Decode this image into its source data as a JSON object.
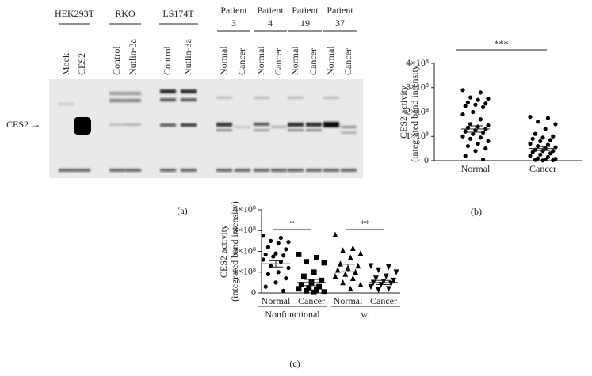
{
  "gel": {
    "label": "(a)",
    "groups": [
      {
        "name": "HEK293T"
      },
      {
        "name": "RKO"
      },
      {
        "name": "LS174T"
      },
      {
        "name": "Patient",
        "number": "3"
      },
      {
        "name": "Patient",
        "number": "4"
      },
      {
        "name": "Patient",
        "number": "19"
      },
      {
        "name": "Patient",
        "number": "37"
      }
    ],
    "lanes": [
      "Mock",
      "CES2",
      "Control",
      "Nutlin-3a",
      "Control",
      "Nutlin-3a",
      "Normal",
      "Cancer",
      "Normal",
      "Cancer",
      "Normal",
      "Cancer",
      "Normal",
      "Cancer"
    ],
    "marker_label": "CES2 →"
  },
  "chart_data": [
    {
      "type": "scatter",
      "label": "(b)",
      "ylabel": [
        "CES2 activity",
        "(integrated band intensity)"
      ],
      "categories": [
        "Normal",
        "Cancer"
      ],
      "ylim": [
        0,
        400000000
      ],
      "yticks": [
        0,
        {
          "value": 100000000,
          "label": "1×10⁸"
        },
        {
          "value": 200000000,
          "label": "2×10⁸"
        },
        {
          "value": 300000000,
          "label": "3×10⁸"
        },
        {
          "value": 400000000,
          "label": "4×10⁸"
        }
      ],
      "significance": [
        "***"
      ],
      "series": [
        {
          "marker": "circle",
          "color": "#000000",
          "mean": 130000000,
          "sem": 13000000,
          "values": [
            290000000,
            280000000,
            260000000,
            255000000,
            250000000,
            240000000,
            235000000,
            230000000,
            225000000,
            220000000,
            200000000,
            190000000,
            170000000,
            150000000,
            145000000,
            140000000,
            135000000,
            130000000,
            125000000,
            120000000,
            115000000,
            110000000,
            100000000,
            95000000,
            90000000,
            80000000,
            70000000,
            60000000,
            50000000,
            40000000,
            20000000,
            5000000
          ]
        },
        {
          "marker": "circle",
          "color": "#000000",
          "mean": 50000000,
          "sem": 8000000,
          "values": [
            180000000,
            175000000,
            160000000,
            150000000,
            130000000,
            110000000,
            100000000,
            95000000,
            90000000,
            85000000,
            80000000,
            70000000,
            65000000,
            60000000,
            55000000,
            50000000,
            45000000,
            40000000,
            40000000,
            35000000,
            30000000,
            25000000,
            20000000,
            15000000,
            10000000,
            8000000,
            5000000,
            3000000,
            2000000,
            1000000
          ]
        }
      ]
    },
    {
      "type": "scatter",
      "label": "(c)",
      "ylabel": [
        "CES2 activity",
        "(integrated band intensity)"
      ],
      "categories": [
        "Normal",
        "Cancer",
        "Normal",
        "Cancer"
      ],
      "groups": [
        "Nonfunctional",
        "wt"
      ],
      "ylim": [
        0,
        400000000
      ],
      "yticks": [
        0,
        {
          "value": 100000000,
          "label": "1×10⁸"
        },
        {
          "value": 200000000,
          "label": "2×10⁸"
        },
        {
          "value": 300000000,
          "label": "3×10⁸"
        },
        {
          "value": 400000000,
          "label": "4×10⁸"
        }
      ],
      "significance": [
        "*",
        "**"
      ],
      "series": [
        {
          "marker": "circle",
          "color": "#000000",
          "mean": 140000000,
          "sem": 15000000,
          "values": [
            275000000,
            265000000,
            250000000,
            245000000,
            240000000,
            220000000,
            210000000,
            190000000,
            185000000,
            180000000,
            175000000,
            160000000,
            150000000,
            130000000,
            120000000,
            100000000,
            90000000,
            70000000,
            50000000,
            30000000,
            10000000
          ]
        },
        {
          "marker": "square",
          "color": "#000000",
          "mean": 50000000,
          "sem": 15000000,
          "values": [
            185000000,
            170000000,
            150000000,
            145000000,
            100000000,
            80000000,
            60000000,
            50000000,
            40000000,
            30000000,
            25000000,
            20000000,
            15000000,
            10000000,
            5000000,
            3000000
          ]
        },
        {
          "marker": "triangle",
          "color": "#000000",
          "mean": 120000000,
          "sem": 18000000,
          "values": [
            280000000,
            215000000,
            205000000,
            190000000,
            170000000,
            140000000,
            130000000,
            120000000,
            110000000,
            100000000,
            90000000,
            80000000,
            70000000,
            50000000,
            40000000,
            20000000
          ]
        },
        {
          "marker": "triangle-down",
          "color": "#000000",
          "mean": 50000000,
          "sem": 10000000,
          "values": [
            130000000,
            125000000,
            110000000,
            100000000,
            80000000,
            70000000,
            60000000,
            55000000,
            50000000,
            45000000,
            40000000,
            30000000,
            20000000,
            15000000
          ]
        }
      ]
    }
  ]
}
